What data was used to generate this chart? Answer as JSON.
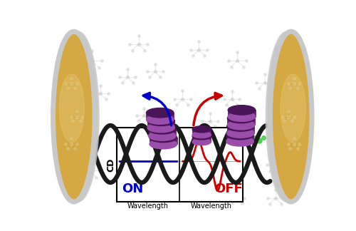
{
  "figsize": [
    5.0,
    3.24
  ],
  "dpi": 100,
  "bg_color": "#ffffff",
  "gold_color": "#D4A843",
  "gold_light": "#E8C878",
  "gold_dark": "#B8922E",
  "silver_color": "#C8C8C8",
  "silver_dark": "#909090",
  "wave_color": "#1a1a1a",
  "purple_color": "#7B2D8B",
  "purple_mid": "#6a2078",
  "purple_dark": "#4a1558",
  "purple_light": "#9B4DAB",
  "blue_color": "#0000CC",
  "red_color": "#CC0000",
  "on_label": "ON",
  "off_label": "OFF",
  "wavelength_label": "Wavelength",
  "cd_label": "CD",
  "green_color": "#44CC44",
  "mol_color": "#bbbbbb",
  "mol_node": "#cccccc"
}
